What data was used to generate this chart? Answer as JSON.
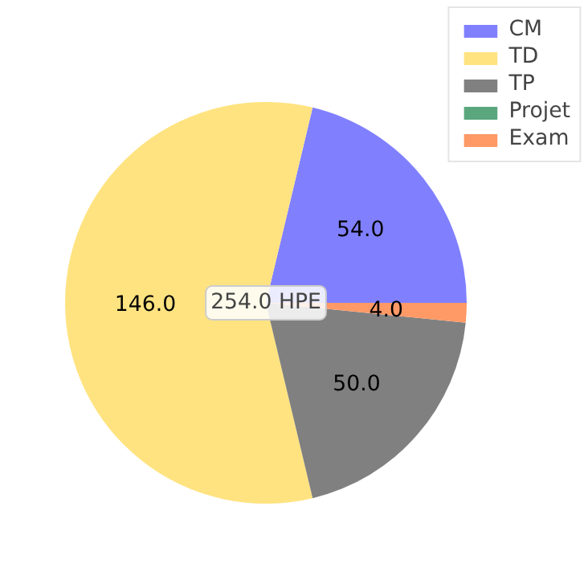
{
  "chart_data": {
    "type": "pie",
    "categories": [
      "CM",
      "TD",
      "TP",
      "Projet",
      "Exam"
    ],
    "values": [
      54,
      146,
      50,
      0,
      4
    ],
    "colors": [
      "#8080ff",
      "#ffe380",
      "#808080",
      "#5aa77e",
      "#ff9966"
    ],
    "value_labels": [
      "54.0",
      "146.0",
      "50.0",
      null,
      "4.0"
    ],
    "annotations": [
      "254.0 HPE"
    ],
    "legend": "top right"
  }
}
